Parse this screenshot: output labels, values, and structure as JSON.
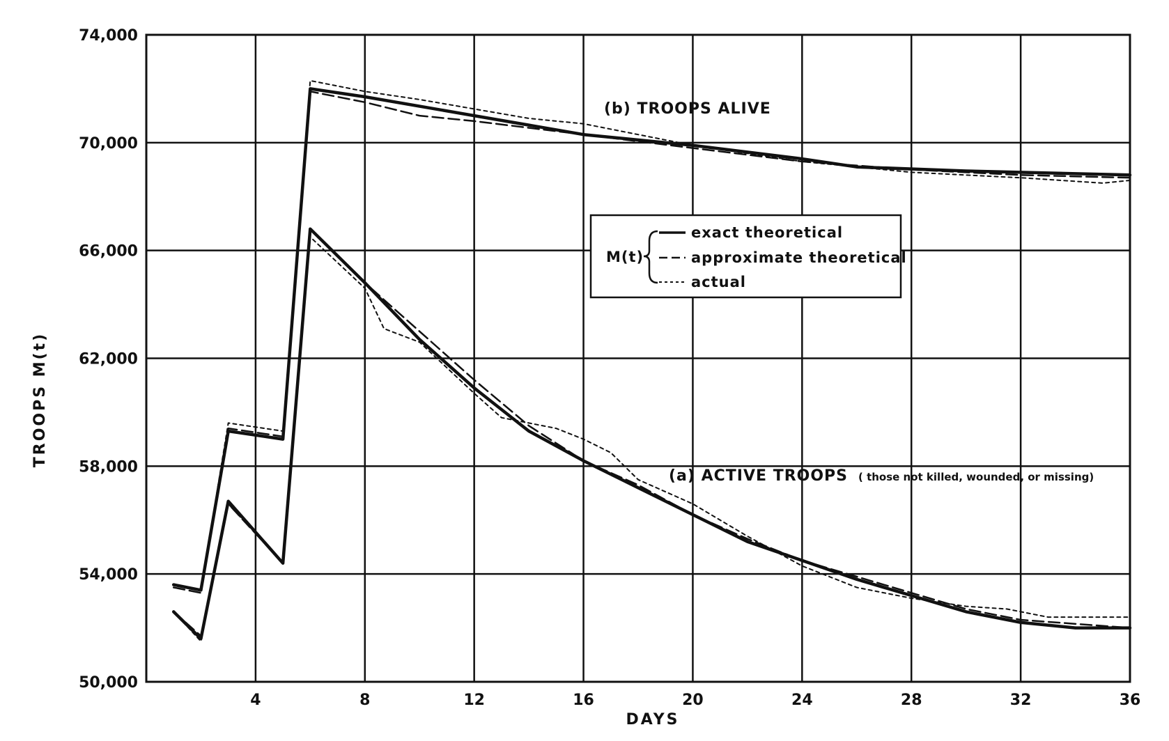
{
  "chart_data": {
    "type": "line",
    "xlabel": "DAYS",
    "ylabel": "TROOPS  M(t)",
    "xlim": [
      0,
      36
    ],
    "ylim": [
      50000,
      74000
    ],
    "x_ticks": [
      4,
      8,
      12,
      16,
      20,
      24,
      28,
      32,
      36
    ],
    "x_tick_labels": [
      "4",
      "8",
      "12",
      "16",
      "20",
      "24",
      "28",
      "32",
      "36"
    ],
    "y_ticks": [
      50000,
      54000,
      58000,
      62000,
      66000,
      70000,
      74000
    ],
    "y_tick_labels": [
      "50,000",
      "54,000",
      "58,000",
      "62,000",
      "66,000",
      "70,000",
      "74,000"
    ],
    "grid": true,
    "legend": {
      "placement": "center-right",
      "prefix": "M(t)",
      "entries": [
        "exact theoretical",
        "approximate theoretical",
        "actual"
      ]
    },
    "annotations": {
      "troops_alive": "(b) TROOPS  ALIVE",
      "active_main": "(a) ACTIVE  TROOPS",
      "active_sub": "( those not killed, wounded, or missing)"
    },
    "groups": [
      {
        "label": "(b) TROOPS  ALIVE",
        "series": [
          {
            "name": "exact theoretical",
            "style": "solid",
            "x": [
              1,
              2,
              3,
              5,
              6,
              8,
              12,
              16,
              20,
              24,
              26,
              30,
              36
            ],
            "y": [
              53600,
              53400,
              59300,
              59000,
              72000,
              71700,
              71000,
              70300,
              69900,
              69400,
              69100,
              68950,
              68800
            ]
          },
          {
            "name": "approximate theoretical",
            "style": "dashed",
            "x": [
              1,
              2,
              3,
              5,
              6,
              8,
              10,
              12,
              16,
              20,
              24,
              28,
              32,
              36
            ],
            "y": [
              53500,
              53300,
              59400,
              59100,
              71900,
              71500,
              71000,
              70800,
              70300,
              69800,
              69300,
              69000,
              68800,
              68700
            ]
          },
          {
            "name": "actual",
            "style": "dotted",
            "x": [
              1,
              2,
              3,
              5,
              6,
              8,
              10,
              14,
              16,
              20,
              24,
              26,
              28,
              32,
              35,
              36
            ],
            "y": [
              53600,
              53400,
              59600,
              59300,
              72300,
              71900,
              71600,
              70900,
              70700,
              69900,
              69300,
              69100,
              68900,
              68700,
              68500,
              68600
            ]
          }
        ]
      },
      {
        "label": "(a) ACTIVE  TROOPS",
        "series": [
          {
            "name": "exact theoretical",
            "style": "solid",
            "x": [
              1,
              2,
              3,
              5,
              6,
              8,
              10,
              12,
              14,
              16,
              18,
              20,
              22,
              24,
              26,
              28,
              30,
              32,
              34,
              36
            ],
            "y": [
              52600,
              51600,
              56700,
              54400,
              66800,
              64800,
              62700,
              60900,
              59300,
              58200,
              57200,
              56200,
              55200,
              54500,
              53800,
              53200,
              52600,
              52200,
              52000,
              52000
            ]
          },
          {
            "name": "approximate theoretical",
            "style": "dashed",
            "x": [
              1,
              2,
              3,
              5,
              6,
              8,
              10,
              12,
              14,
              16,
              18,
              20,
              22,
              24,
              26,
              28,
              30,
              32,
              36
            ],
            "y": [
              52600,
              51700,
              56600,
              54400,
              66800,
              64800,
              63000,
              61200,
              59500,
              58200,
              57300,
              56200,
              55300,
              54500,
              53900,
              53300,
              52700,
              52300,
              52000
            ]
          },
          {
            "name": "actual",
            "style": "dotted",
            "x": [
              1,
              2,
              3,
              5,
              6,
              8,
              8.7,
              10,
              12,
              13,
              15,
              16,
              17,
              18,
              20,
              22,
              24,
              26,
              28,
              30,
              31.5,
              33,
              36
            ],
            "y": [
              52600,
              51500,
              56600,
              54400,
              66500,
              64600,
              63100,
              62600,
              60700,
              59800,
              59400,
              59000,
              58500,
              57500,
              56600,
              55400,
              54300,
              53500,
              53100,
              52800,
              52700,
              52400,
              52400
            ]
          }
        ]
      }
    ]
  }
}
